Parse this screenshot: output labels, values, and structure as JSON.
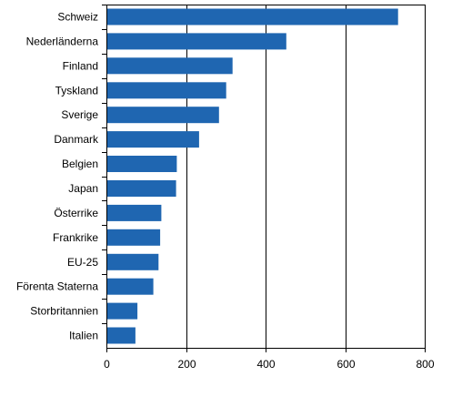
{
  "chart_data": {
    "type": "bar",
    "orientation": "horizontal",
    "title": "",
    "xlabel": "",
    "ylabel": "",
    "categories": [
      "Schweiz",
      "Nederländerna",
      "Finland",
      "Tyskland",
      "Sverige",
      "Danmark",
      "Belgien",
      "Japan",
      "Österrike",
      "Frankrike",
      "EU-25",
      "Förenta Staterna",
      "Storbritannien",
      "Italien"
    ],
    "values": [
      733,
      452,
      317,
      301,
      283,
      233,
      177,
      175,
      138,
      135,
      131,
      118,
      78,
      73
    ],
    "xlim": [
      0,
      800
    ],
    "xticks": [
      "0",
      "200",
      "400",
      "600",
      "800"
    ],
    "tick_values": [
      0,
      200,
      400,
      600,
      800
    ],
    "grid": true,
    "legend": "none",
    "colors": {
      "bar": "#1f66b1",
      "grid": "#000000",
      "axis": "#000000"
    }
  }
}
